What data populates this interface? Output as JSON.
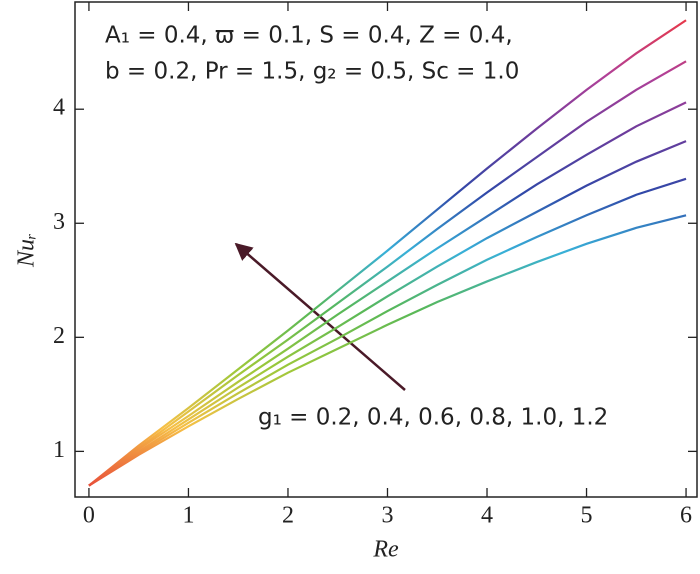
{
  "chart_data": {
    "type": "line",
    "xlabel": "Re",
    "ylabel": "Nuᵣ",
    "annotations": [
      "A₁ = 0.4, ϖ = 0.1, S = 0.4, Z = 0.4,",
      "b = 0.2, Pr = 1.5, g₂ = 0.5, Sc = 1.0",
      "g₁ = 0.2, 0.4, 0.6, 0.8, 1.0, 1.2"
    ],
    "x": [
      0,
      0.5,
      1,
      1.5,
      2,
      2.5,
      3,
      3.5,
      4,
      4.5,
      5,
      5.5,
      6
    ],
    "series": [
      {
        "values": [
          0.7,
          0.97,
          1.22,
          1.46,
          1.69,
          1.9,
          2.11,
          2.31,
          2.49,
          2.66,
          2.82,
          2.96,
          3.07
        ]
      },
      {
        "values": [
          0.7,
          0.985,
          1.25,
          1.51,
          1.76,
          1.99,
          2.23,
          2.46,
          2.68,
          2.88,
          3.07,
          3.25,
          3.39
        ]
      },
      {
        "values": [
          0.7,
          1.0,
          1.28,
          1.56,
          1.83,
          2.09,
          2.36,
          2.62,
          2.87,
          3.1,
          3.33,
          3.54,
          3.72
        ]
      },
      {
        "values": [
          0.7,
          1.02,
          1.31,
          1.61,
          1.9,
          2.2,
          2.49,
          2.78,
          3.06,
          3.34,
          3.6,
          3.85,
          4.06
        ]
      },
      {
        "values": [
          0.7,
          1.03,
          1.35,
          1.67,
          1.98,
          2.3,
          2.62,
          2.95,
          3.27,
          3.58,
          3.89,
          4.17,
          4.42
        ]
      },
      {
        "values": [
          0.7,
          1.05,
          1.38,
          1.72,
          2.06,
          2.41,
          2.76,
          3.12,
          3.48,
          3.83,
          4.17,
          4.49,
          4.78
        ]
      }
    ],
    "line_colors": [
      "#e8503a",
      "#f6c046",
      "#9cc83a",
      "#58b858",
      "#38b0d8",
      "#3048a8",
      "#6a3c9c",
      "#b04098",
      "#e83848"
    ],
    "xlim": [
      -0.14,
      6.11
    ],
    "ylim": [
      0.6,
      4.94
    ],
    "xticks": [
      0,
      1,
      2,
      3,
      4,
      5,
      6
    ],
    "yticks": [
      1,
      2,
      3,
      4
    ]
  }
}
